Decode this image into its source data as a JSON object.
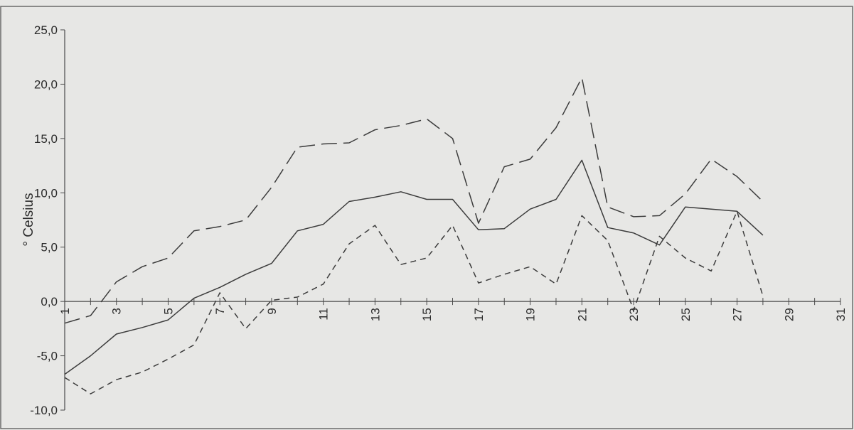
{
  "chart_data": {
    "type": "line",
    "title": "",
    "xlabel": "",
    "ylabel": "° Celsius",
    "x": [
      1,
      2,
      3,
      4,
      5,
      6,
      7,
      8,
      9,
      10,
      11,
      12,
      13,
      14,
      15,
      16,
      17,
      18,
      19,
      20,
      21,
      22,
      23,
      24,
      25,
      26,
      27,
      28
    ],
    "x_ticks": [
      "1",
      "3",
      "5",
      "7",
      "9",
      "11",
      "13",
      "15",
      "17",
      "19",
      "21",
      "23",
      "25",
      "27",
      "29",
      "31"
    ],
    "xlim": [
      1,
      31
    ],
    "y_ticks": [
      "25,0",
      "20,0",
      "15,0",
      "10,0",
      "5,0",
      "0,0",
      "-5,0",
      "-10,0"
    ],
    "ylim": [
      -10,
      25
    ],
    "grid": false,
    "series": [
      {
        "style": "long-dash",
        "values": [
          -2.0,
          -1.3,
          1.8,
          3.2,
          4.0,
          6.5,
          6.9,
          7.5,
          10.5,
          14.2,
          14.5,
          14.6,
          15.8,
          16.2,
          16.8,
          15.0,
          7.2,
          12.4,
          13.1,
          16.0,
          20.6,
          8.7,
          7.8,
          7.9,
          9.9,
          13.1,
          11.5,
          9.2
        ]
      },
      {
        "style": "solid",
        "values": [
          -6.7,
          -5.0,
          -3.0,
          -2.4,
          -1.7,
          0.3,
          1.3,
          2.5,
          3.5,
          6.5,
          7.1,
          9.2,
          9.6,
          10.1,
          9.4,
          9.4,
          6.6,
          6.7,
          8.5,
          9.4,
          13.0,
          6.8,
          6.3,
          5.2,
          8.7,
          8.5,
          8.3,
          6.1
        ]
      },
      {
        "style": "short-dash",
        "values": [
          -7.0,
          -8.5,
          -7.2,
          -6.5,
          -5.3,
          -4.0,
          0.8,
          -2.5,
          0.1,
          0.4,
          1.6,
          5.3,
          7.0,
          3.4,
          4.0,
          7.0,
          1.7,
          2.5,
          3.2,
          1.6,
          7.9,
          5.6,
          -0.8,
          6.0,
          4.0,
          2.8,
          8.3,
          0.5
        ]
      }
    ]
  }
}
